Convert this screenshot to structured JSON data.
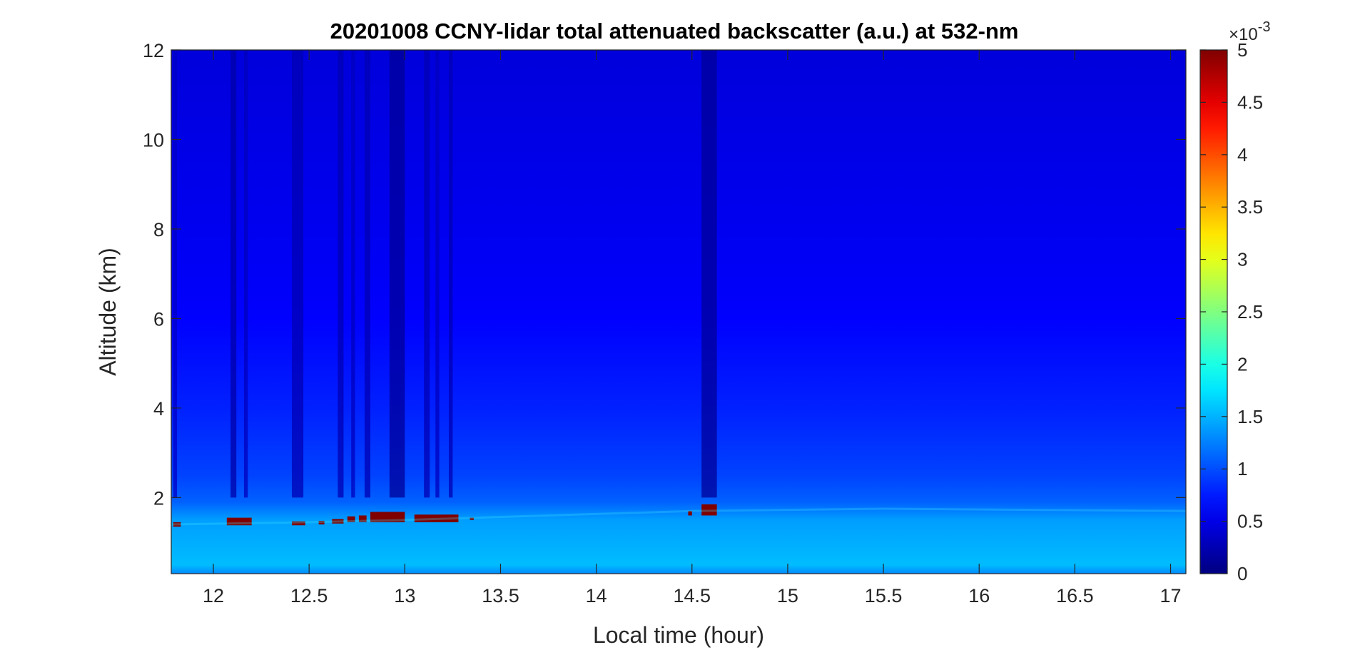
{
  "chart_data": {
    "type": "heatmap",
    "title": "20201008 CCNY-lidar total attenuated backscatter (a.u.) at 532-nm",
    "xlabel": "Local time (hour)",
    "ylabel": "Altitude (km)",
    "xlim": [
      11.78,
      17.08
    ],
    "ylim": [
      0.3,
      12
    ],
    "xticks": [
      12,
      12.5,
      13,
      13.5,
      14,
      14.5,
      15,
      15.5,
      16,
      16.5,
      17
    ],
    "xtick_labels": [
      "12",
      "12.5",
      "13",
      "13.5",
      "14",
      "14.5",
      "15",
      "15.5",
      "16",
      "16.5",
      "17"
    ],
    "yticks": [
      2,
      4,
      6,
      8,
      10,
      12
    ],
    "ytick_labels": [
      "2",
      "4",
      "6",
      "8",
      "10",
      "12"
    ],
    "colorbar": {
      "colormap": "jet",
      "range": [
        0,
        5
      ],
      "ticks": [
        0,
        0.5,
        1,
        1.5,
        2,
        2.5,
        3,
        3.5,
        4,
        4.5,
        5
      ],
      "tick_labels": [
        "0",
        "0.5",
        "1",
        "1.5",
        "2",
        "2.5",
        "3",
        "3.5",
        "4",
        "4.5",
        "5"
      ],
      "multiplier_base": "×10",
      "multiplier_exp": "-3"
    },
    "background_profile": [
      {
        "altitude": 0.3,
        "value": 1.3
      },
      {
        "altitude": 0.5,
        "value": 1.55
      },
      {
        "altitude": 1.5,
        "value": 1.4
      },
      {
        "altitude": 1.9,
        "value": 1.1
      },
      {
        "altitude": 2.5,
        "value": 0.95
      },
      {
        "altitude": 4,
        "value": 0.78
      },
      {
        "altitude": 6,
        "value": 0.62
      },
      {
        "altitude": 8,
        "value": 0.55
      },
      {
        "altitude": 10,
        "value": 0.5
      },
      {
        "altitude": 12,
        "value": 0.45
      }
    ],
    "aerosol_layer_top": [
      {
        "time": 11.78,
        "altitude": 1.4
      },
      {
        "time": 12.5,
        "altitude": 1.45
      },
      {
        "time": 13.0,
        "altitude": 1.5
      },
      {
        "time": 14.5,
        "altitude": 1.7
      },
      {
        "time": 15.5,
        "altitude": 1.75
      },
      {
        "time": 17.08,
        "altitude": 1.7
      }
    ],
    "dark_columns": [
      {
        "start": 11.79,
        "end": 11.81,
        "value": 0.35
      },
      {
        "start": 12.09,
        "end": 12.12,
        "value": 0.2
      },
      {
        "start": 12.16,
        "end": 12.18,
        "value": 0.3
      },
      {
        "start": 12.41,
        "end": 12.47,
        "value": 0.25
      },
      {
        "start": 12.65,
        "end": 12.68,
        "value": 0.25
      },
      {
        "start": 12.72,
        "end": 12.74,
        "value": 0.3
      },
      {
        "start": 12.79,
        "end": 12.82,
        "value": 0.25
      },
      {
        "start": 12.92,
        "end": 13.0,
        "value": 0.12
      },
      {
        "start": 13.1,
        "end": 13.13,
        "value": 0.25
      },
      {
        "start": 13.16,
        "end": 13.18,
        "value": 0.3
      },
      {
        "start": 13.23,
        "end": 13.25,
        "value": 0.25
      },
      {
        "start": 14.55,
        "end": 14.63,
        "value": 0.12
      }
    ],
    "cloud_cells": [
      {
        "start": 11.79,
        "end": 11.83,
        "bottom": 1.35,
        "top": 1.45
      },
      {
        "start": 12.07,
        "end": 12.2,
        "bottom": 1.38,
        "top": 1.55
      },
      {
        "start": 12.41,
        "end": 12.48,
        "bottom": 1.38,
        "top": 1.47
      },
      {
        "start": 12.55,
        "end": 12.58,
        "bottom": 1.4,
        "top": 1.48
      },
      {
        "start": 12.62,
        "end": 12.68,
        "bottom": 1.42,
        "top": 1.52
      },
      {
        "start": 12.7,
        "end": 12.74,
        "bottom": 1.45,
        "top": 1.58
      },
      {
        "start": 12.76,
        "end": 12.8,
        "bottom": 1.45,
        "top": 1.6
      },
      {
        "start": 12.82,
        "end": 13.0,
        "bottom": 1.45,
        "top": 1.68
      },
      {
        "start": 13.05,
        "end": 13.28,
        "bottom": 1.45,
        "top": 1.62
      },
      {
        "start": 13.34,
        "end": 13.36,
        "bottom": 1.5,
        "top": 1.55
      },
      {
        "start": 14.48,
        "end": 14.5,
        "bottom": 1.6,
        "top": 1.7
      },
      {
        "start": 14.55,
        "end": 14.63,
        "bottom": 1.6,
        "top": 1.85
      }
    ]
  }
}
